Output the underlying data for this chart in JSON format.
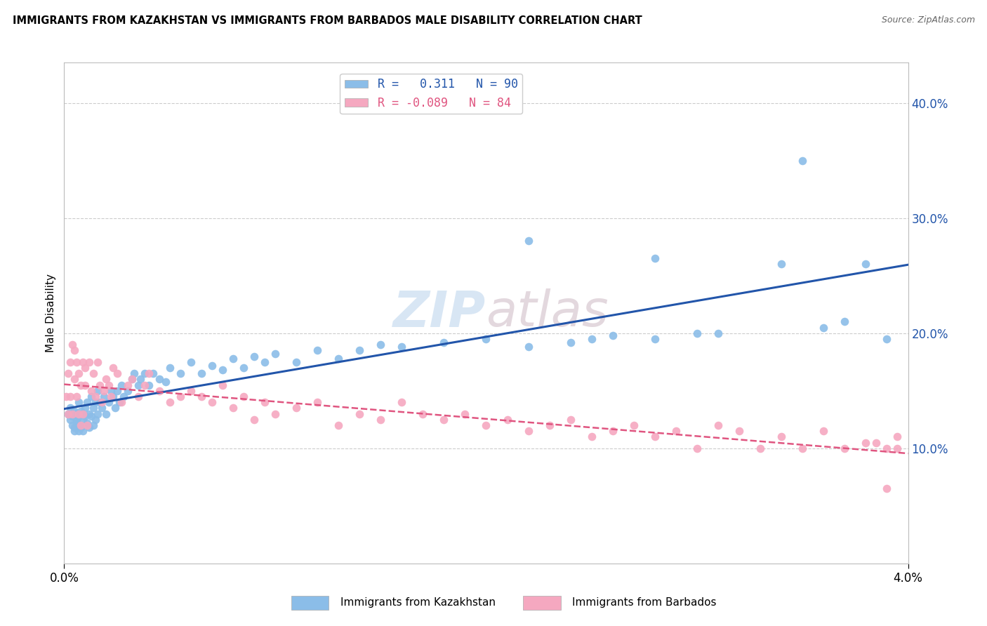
{
  "title": "IMMIGRANTS FROM KAZAKHSTAN VS IMMIGRANTS FROM BARBADOS MALE DISABILITY CORRELATION CHART",
  "source": "Source: ZipAtlas.com",
  "ylabel": "Male Disability",
  "right_yticks": [
    "10.0%",
    "20.0%",
    "30.0%",
    "40.0%"
  ],
  "right_ytick_vals": [
    0.1,
    0.2,
    0.3,
    0.4
  ],
  "x_range": [
    0.0,
    0.04
  ],
  "y_range": [
    0.0,
    0.435
  ],
  "series1_color": "#8BBDE8",
  "series2_color": "#F5A8C0",
  "line1_color": "#2255AA",
  "line2_color": "#E05580",
  "watermark_color": "#DDEEFF",
  "legend_label1": "Immigrants from Kazakhstan",
  "legend_label2": "Immigrants from Barbados",
  "series1_R": 0.311,
  "series1_N": 90,
  "series2_R": -0.089,
  "series2_N": 84,
  "kazakhstan_x": [
    0.0002,
    0.0003,
    0.0003,
    0.0004,
    0.0004,
    0.0005,
    0.0005,
    0.0005,
    0.0006,
    0.0006,
    0.0006,
    0.0007,
    0.0007,
    0.0007,
    0.0008,
    0.0008,
    0.0008,
    0.0009,
    0.0009,
    0.0009,
    0.001,
    0.001,
    0.0011,
    0.0011,
    0.0012,
    0.0012,
    0.0013,
    0.0013,
    0.0014,
    0.0014,
    0.0015,
    0.0015,
    0.0016,
    0.0016,
    0.0017,
    0.0018,
    0.0019,
    0.002,
    0.0021,
    0.0022,
    0.0023,
    0.0024,
    0.0025,
    0.0026,
    0.0027,
    0.0028,
    0.003,
    0.0032,
    0.0033,
    0.0035,
    0.0036,
    0.0038,
    0.004,
    0.0042,
    0.0045,
    0.0048,
    0.005,
    0.0055,
    0.006,
    0.0065,
    0.007,
    0.0075,
    0.008,
    0.0085,
    0.009,
    0.0095,
    0.01,
    0.011,
    0.012,
    0.013,
    0.014,
    0.015,
    0.016,
    0.018,
    0.02,
    0.022,
    0.024,
    0.026,
    0.028,
    0.03,
    0.022,
    0.025,
    0.028,
    0.031,
    0.034,
    0.035,
    0.036,
    0.037,
    0.038,
    0.039
  ],
  "kazakhstan_y": [
    0.13,
    0.125,
    0.135,
    0.12,
    0.128,
    0.115,
    0.132,
    0.118,
    0.122,
    0.13,
    0.125,
    0.128,
    0.115,
    0.14,
    0.12,
    0.132,
    0.118,
    0.125,
    0.13,
    0.115,
    0.135,
    0.128,
    0.14,
    0.122,
    0.13,
    0.118,
    0.145,
    0.128,
    0.135,
    0.12,
    0.14,
    0.125,
    0.15,
    0.13,
    0.14,
    0.135,
    0.145,
    0.13,
    0.14,
    0.15,
    0.145,
    0.135,
    0.15,
    0.14,
    0.155,
    0.145,
    0.15,
    0.16,
    0.165,
    0.155,
    0.16,
    0.165,
    0.155,
    0.165,
    0.16,
    0.158,
    0.17,
    0.165,
    0.175,
    0.165,
    0.172,
    0.168,
    0.178,
    0.17,
    0.18,
    0.175,
    0.182,
    0.175,
    0.185,
    0.178,
    0.185,
    0.19,
    0.188,
    0.192,
    0.195,
    0.188,
    0.192,
    0.198,
    0.195,
    0.2,
    0.28,
    0.195,
    0.265,
    0.2,
    0.26,
    0.35,
    0.205,
    0.21,
    0.26,
    0.195
  ],
  "barbados_x": [
    0.0001,
    0.0002,
    0.0002,
    0.0003,
    0.0003,
    0.0004,
    0.0004,
    0.0005,
    0.0005,
    0.0006,
    0.0006,
    0.0007,
    0.0007,
    0.0008,
    0.0008,
    0.0009,
    0.0009,
    0.001,
    0.001,
    0.0011,
    0.0012,
    0.0013,
    0.0014,
    0.0015,
    0.0016,
    0.0017,
    0.0018,
    0.0019,
    0.002,
    0.0021,
    0.0022,
    0.0023,
    0.0025,
    0.0027,
    0.003,
    0.0032,
    0.0035,
    0.0038,
    0.004,
    0.0045,
    0.005,
    0.0055,
    0.006,
    0.0065,
    0.007,
    0.0075,
    0.008,
    0.0085,
    0.009,
    0.0095,
    0.01,
    0.011,
    0.012,
    0.013,
    0.014,
    0.015,
    0.016,
    0.017,
    0.018,
    0.019,
    0.02,
    0.021,
    0.022,
    0.023,
    0.024,
    0.025,
    0.026,
    0.027,
    0.028,
    0.029,
    0.03,
    0.031,
    0.032,
    0.033,
    0.034,
    0.035,
    0.036,
    0.037,
    0.038,
    0.039,
    0.0395,
    0.0395,
    0.039,
    0.0385
  ],
  "barbados_y": [
    0.145,
    0.165,
    0.13,
    0.175,
    0.145,
    0.19,
    0.13,
    0.185,
    0.16,
    0.145,
    0.175,
    0.13,
    0.165,
    0.12,
    0.155,
    0.175,
    0.13,
    0.155,
    0.17,
    0.12,
    0.175,
    0.15,
    0.165,
    0.145,
    0.175,
    0.155,
    0.14,
    0.15,
    0.16,
    0.155,
    0.145,
    0.17,
    0.165,
    0.14,
    0.155,
    0.16,
    0.145,
    0.155,
    0.165,
    0.15,
    0.14,
    0.145,
    0.15,
    0.145,
    0.14,
    0.155,
    0.135,
    0.145,
    0.125,
    0.14,
    0.13,
    0.135,
    0.14,
    0.12,
    0.13,
    0.125,
    0.14,
    0.13,
    0.125,
    0.13,
    0.12,
    0.125,
    0.115,
    0.12,
    0.125,
    0.11,
    0.115,
    0.12,
    0.11,
    0.115,
    0.1,
    0.12,
    0.115,
    0.1,
    0.11,
    0.1,
    0.115,
    0.1,
    0.105,
    0.1,
    0.1,
    0.11,
    0.065,
    0.105
  ]
}
